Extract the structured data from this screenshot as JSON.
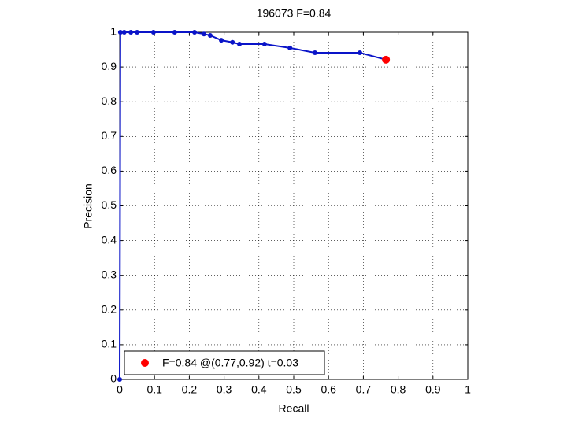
{
  "chart_data": {
    "type": "line",
    "title": "196073 F=0.84",
    "xlabel": "Recall",
    "ylabel": "Precision",
    "xlim": [
      0,
      1
    ],
    "ylim": [
      0,
      1
    ],
    "xticks": [
      0,
      0.1,
      0.2,
      0.3,
      0.4,
      0.5,
      0.6,
      0.7,
      0.8,
      0.9,
      1
    ],
    "yticks": [
      0,
      0.1,
      0.2,
      0.3,
      0.4,
      0.5,
      0.6,
      0.7,
      0.8,
      0.9,
      1
    ],
    "grid": true,
    "legend": "lower left",
    "series": [
      {
        "color": "#0a14c8",
        "x": [
          0,
          0.002,
          0.013,
          0.032,
          0.05,
          0.097,
          0.158,
          0.215,
          0.242,
          0.26,
          0.292,
          0.324,
          0.344,
          0.416,
          0.489,
          0.561,
          0.69,
          0.765
        ],
        "values": [
          0,
          1,
          1,
          1,
          1,
          1,
          1,
          1,
          0.995,
          0.991,
          0.977,
          0.971,
          0.966,
          0.966,
          0.955,
          0.941,
          0.941,
          0.921
        ]
      },
      {
        "name": "F=0.84 @(0.77,0.92) t=0.03",
        "color": "#ff0000",
        "x": [
          0.765
        ],
        "values": [
          0.921
        ]
      }
    ]
  }
}
